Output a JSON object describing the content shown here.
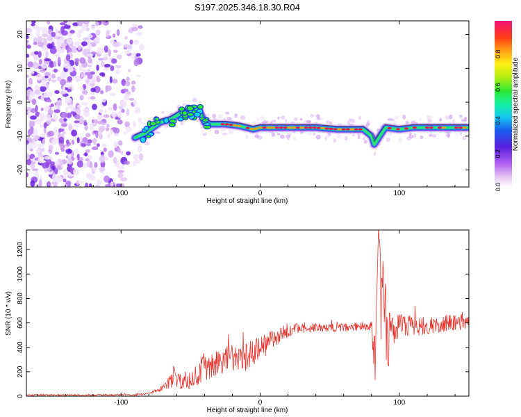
{
  "title": "S197.2025.346.18.30.R04",
  "colors": {
    "line": "#e8322a",
    "frame": "#000000",
    "background": "#ffffff",
    "ridge_core": "#e8124e"
  },
  "chart_data": [
    {
      "type": "heatmap",
      "title": "S197.2025.346.18.30.R04",
      "xlabel": "Height of straight line (km)",
      "ylabel": "Frequency (Hz)",
      "xlim": [
        -168,
        150
      ],
      "ylim": [
        -25,
        24
      ],
      "xticks": [
        -100,
        0,
        100
      ],
      "xtick_labels": [
        "-100",
        "0",
        "100"
      ],
      "yticks": [
        -20,
        -10,
        0,
        10,
        20
      ],
      "ytick_labels": [
        "-20",
        "-10",
        "0",
        "10",
        "20"
      ],
      "grid": false,
      "ridge": {
        "x": [
          -90,
          -82,
          -72,
          -64,
          -56,
          -50,
          -44,
          -40,
          -35,
          -25,
          -15,
          -10,
          -5,
          0,
          10,
          20,
          30,
          40,
          55,
          70,
          74,
          80,
          82,
          86,
          90,
          100,
          110,
          120,
          130,
          140,
          150
        ],
        "freq": [
          -10.5,
          -9,
          -6,
          -5,
          -3,
          -3,
          -2,
          -6,
          -6.5,
          -6.5,
          -7,
          -7.5,
          -8,
          -7.5,
          -7.5,
          -7.5,
          -7.5,
          -7.5,
          -8,
          -8,
          -8,
          -10,
          -12.5,
          -10,
          -7.5,
          -8,
          -7.5,
          -7.5,
          -7.5,
          -7.5,
          -7.5
        ]
      },
      "noise_region_x": [
        -168,
        -85
      ],
      "colorbar": {
        "label": "Normalized spectral amplitude",
        "range": [
          0,
          1
        ],
        "ticks": [
          0.0,
          0.2,
          0.4,
          0.6,
          0.8
        ],
        "tick_labels": [
          "0.0",
          "0.2",
          "0.4",
          "0.6",
          "0.8"
        ]
      }
    },
    {
      "type": "line",
      "xlabel": "Height of straight line (km)",
      "ylabel": "SNR (10 * v/v)",
      "xlim": [
        -168,
        150
      ],
      "ylim": [
        0,
        1360
      ],
      "xticks": [
        -100,
        0,
        100
      ],
      "xtick_labels": [
        "-100",
        "0",
        "100"
      ],
      "yticks": [
        0,
        200,
        400,
        600,
        800,
        1000,
        1200
      ],
      "ytick_labels": [
        "0",
        "200",
        "400",
        "600",
        "800",
        "1000",
        "1200"
      ],
      "grid": false,
      "series": [
        {
          "name": "SNR",
          "x": [
            -168,
            -150,
            -130,
            -110,
            -90,
            -80,
            -70,
            -64,
            -62,
            -60,
            -55,
            -50,
            -45,
            -42,
            -40,
            -35,
            -30,
            -20,
            -10,
            0,
            10,
            20,
            30,
            40,
            50,
            60,
            70,
            80,
            82,
            84,
            85,
            86,
            87,
            88,
            90,
            92,
            94,
            96,
            100,
            110,
            120,
            130,
            140,
            150
          ],
          "values": [
            10,
            10,
            8,
            10,
            10,
            20,
            60,
            120,
            200,
            120,
            100,
            130,
            180,
            220,
            250,
            230,
            270,
            330,
            320,
            390,
            480,
            530,
            560,
            560,
            560,
            560,
            570,
            580,
            200,
            900,
            1200,
            1340,
            500,
            1050,
            600,
            400,
            560,
            520,
            600,
            570,
            580,
            590,
            610,
            600
          ],
          "spread": [
            6,
            6,
            6,
            6,
            6,
            8,
            25,
            70,
            90,
            80,
            60,
            70,
            90,
            110,
            120,
            110,
            110,
            130,
            120,
            110,
            80,
            55,
            45,
            35,
            35,
            35,
            35,
            40,
            300,
            350,
            200,
            60,
            400,
            400,
            350,
            250,
            150,
            120,
            100,
            80,
            70,
            70,
            70,
            70
          ]
        }
      ]
    }
  ]
}
